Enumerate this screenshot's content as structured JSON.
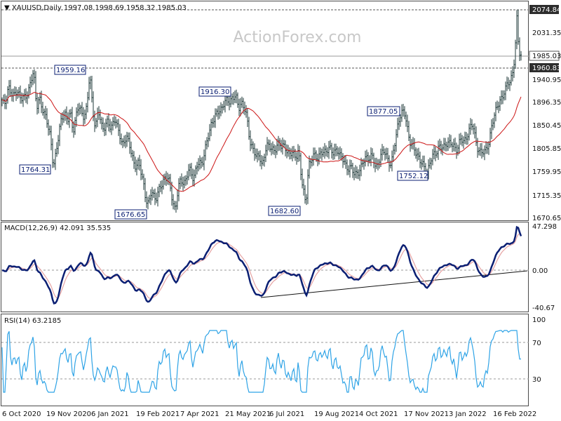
{
  "colors": {
    "price": "#1f3a3a",
    "sma": "#cc1414",
    "macd": "#0b1f73",
    "signal": "#e6a3a3",
    "rsi": "#2ea3e6",
    "grid": "#9a9a9a",
    "price_tag_bg": "#2d2d2d",
    "watermark": "#c8c8c8",
    "label_border": "#0b1f73"
  },
  "header": {
    "symbol_info": "XAUUSD,Daily  1997.08 1998.69 1958.32 1985.03",
    "watermark": "ActionForex.com"
  },
  "chart_data": [
    {
      "type": "line",
      "name": "price",
      "ylim": [
        1660,
        2090
      ],
      "y_ticks": [
        "2074.84",
        "2031.35",
        "1985.03",
        "1960.83",
        "1940.95",
        "1896.35",
        "1850.45",
        "1805.85",
        "1759.95",
        "1715.35",
        "1670.65"
      ],
      "x_tick_labels": [
        "6 Oct 2020",
        "19 Nov 2020",
        "6 Jan 2021",
        "19 Feb 2021",
        "7 Apr 2021",
        "21 May 2021",
        "6 Jul 2021",
        "19 Aug 2021",
        "4 Oct 2021",
        "17 Nov 2021",
        "3 Jan 2022",
        "16 Feb 2022"
      ],
      "current_price": "1985.03",
      "highlighted_levels": [
        "2074.84",
        "1960.83"
      ],
      "annotations": [
        "1959.16",
        "1764.31",
        "1676.65",
        "1916.30",
        "1682.60",
        "1877.05",
        "1752.12"
      ],
      "series_points": [
        [
          0,
          1905
        ],
        [
          6,
          1890
        ],
        [
          12,
          1930
        ],
        [
          18,
          1905
        ],
        [
          24,
          1925
        ],
        [
          30,
          1900
        ],
        [
          36,
          1910
        ],
        [
          42,
          1925
        ],
        [
          48,
          1960
        ],
        [
          52,
          1890
        ],
        [
          56,
          1905
        ],
        [
          60,
          1880
        ],
        [
          66,
          1870
        ],
        [
          72,
          1820
        ],
        [
          76,
          1764
        ],
        [
          80,
          1800
        ],
        [
          86,
          1850
        ],
        [
          92,
          1880
        ],
        [
          96,
          1860
        ],
        [
          100,
          1875
        ],
        [
          104,
          1835
        ],
        [
          108,
          1870
        ],
        [
          112,
          1890
        ],
        [
          118,
          1865
        ],
        [
          124,
          1890
        ],
        [
          128,
          1955
        ],
        [
          132,
          1880
        ],
        [
          136,
          1850
        ],
        [
          140,
          1880
        ],
        [
          146,
          1840
        ],
        [
          152,
          1860
        ],
        [
          158,
          1840
        ],
        [
          164,
          1870
        ],
        [
          168,
          1840
        ],
        [
          174,
          1810
        ],
        [
          180,
          1830
        ],
        [
          186,
          1800
        ],
        [
          192,
          1770
        ],
        [
          198,
          1770
        ],
        [
          204,
          1740
        ],
        [
          208,
          1700
        ],
        [
          212,
          1685
        ],
        [
          216,
          1720
        ],
        [
          222,
          1700
        ],
        [
          228,
          1720
        ],
        [
          234,
          1745
        ],
        [
          240,
          1740
        ],
        [
          246,
          1700
        ],
        [
          250,
          1677
        ],
        [
          254,
          1720
        ],
        [
          258,
          1740
        ],
        [
          264,
          1735
        ],
        [
          270,
          1760
        ],
        [
          276,
          1745
        ],
        [
          282,
          1770
        ],
        [
          288,
          1775
        ],
        [
          294,
          1810
        ],
        [
          298,
          1830
        ],
        [
          302,
          1860
        ],
        [
          308,
          1870
        ],
        [
          314,
          1880
        ],
        [
          320,
          1900
        ],
        [
          326,
          1895
        ],
        [
          332,
          1910
        ],
        [
          336,
          1910
        ],
        [
          340,
          1880
        ],
        [
          344,
          1900
        ],
        [
          350,
          1880
        ],
        [
          356,
          1820
        ],
        [
          362,
          1800
        ],
        [
          366,
          1780
        ],
        [
          370,
          1790
        ],
        [
          374,
          1770
        ],
        [
          380,
          1805
        ],
        [
          386,
          1810
        ],
        [
          392,
          1795
        ],
        [
          398,
          1815
        ],
        [
          404,
          1810
        ],
        [
          410,
          1790
        ],
        [
          416,
          1800
        ],
        [
          422,
          1780
        ],
        [
          426,
          1800
        ],
        [
          430,
          1745
        ],
        [
          436,
          1683
        ],
        [
          440,
          1770
        ],
        [
          446,
          1790
        ],
        [
          452,
          1780
        ],
        [
          458,
          1800
        ],
        [
          464,
          1790
        ],
        [
          470,
          1810
        ],
        [
          476,
          1790
        ],
        [
          482,
          1800
        ],
        [
          488,
          1785
        ],
        [
          494,
          1760
        ],
        [
          500,
          1770
        ],
        [
          506,
          1745
        ],
        [
          512,
          1760
        ],
        [
          518,
          1775
        ],
        [
          524,
          1785
        ],
        [
          530,
          1790
        ],
        [
          536,
          1760
        ],
        [
          542,
          1790
        ],
        [
          548,
          1795
        ],
        [
          554,
          1780
        ],
        [
          558,
          1770
        ],
        [
          564,
          1820
        ],
        [
          568,
          1860
        ],
        [
          572,
          1876
        ],
        [
          578,
          1870
        ],
        [
          584,
          1820
        ],
        [
          590,
          1800
        ],
        [
          596,
          1790
        ],
        [
          602,
          1770
        ],
        [
          608,
          1752
        ],
        [
          614,
          1780
        ],
        [
          620,
          1790
        ],
        [
          626,
          1810
        ],
        [
          632,
          1800
        ],
        [
          638,
          1820
        ],
        [
          644,
          1810
        ],
        [
          650,
          1800
        ],
        [
          656,
          1820
        ],
        [
          662,
          1815
        ],
        [
          668,
          1840
        ],
        [
          674,
          1850
        ],
        [
          680,
          1810
        ],
        [
          686,
          1790
        ],
        [
          692,
          1800
        ],
        [
          698,
          1820
        ],
        [
          702,
          1850
        ],
        [
          706,
          1880
        ],
        [
          710,
          1895
        ],
        [
          716,
          1900
        ],
        [
          720,
          1925
        ],
        [
          724,
          1940
        ],
        [
          728,
          1935
        ],
        [
          732,
          1960
        ],
        [
          735,
          2020
        ],
        [
          737,
          2070
        ],
        [
          740,
          2000
        ],
        [
          743,
          1985
        ]
      ]
    },
    {
      "type": "line",
      "name": "MACD",
      "title": "MACD(12,26,9) 42.091 35.535",
      "y_ticks": [
        "47.298",
        "0.00",
        "-40.67"
      ],
      "ylim": [
        -40.67,
        47.298
      ]
    },
    {
      "type": "line",
      "name": "RSI",
      "title": "RSI(14) 63.2185",
      "y_ticks": [
        "100",
        "70",
        "30"
      ],
      "ylim": [
        10,
        100
      ]
    }
  ]
}
